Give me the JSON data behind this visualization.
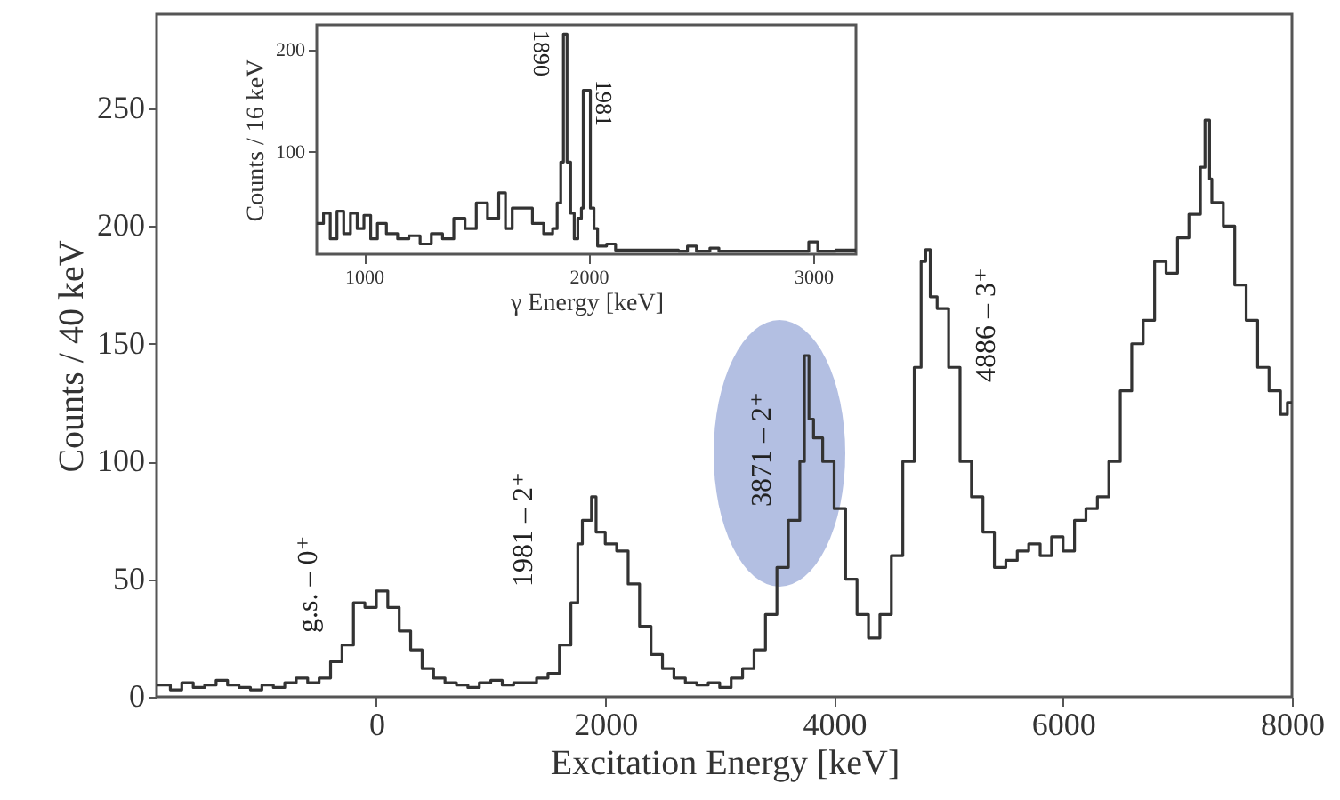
{
  "chart_data": [
    {
      "type": "step",
      "xlabel": "Excitation Energy [keV]",
      "ylabel": "Counts / 40 keV",
      "color": "#333333",
      "xlim": [
        -1920,
        8000
      ],
      "ylim": [
        0,
        290
      ],
      "xticks": [
        0,
        2000,
        4000,
        6000,
        8000
      ],
      "yticks": [
        0,
        50,
        100,
        150,
        200,
        250
      ],
      "x": [
        -1920,
        -1800,
        -1700,
        -1600,
        -1500,
        -1400,
        -1300,
        -1200,
        -1100,
        -1000,
        -900,
        -800,
        -700,
        -600,
        -500,
        -400,
        -300,
        -200,
        -100,
        0,
        100,
        200,
        300,
        400,
        500,
        600,
        700,
        800,
        900,
        1000,
        1100,
        1200,
        1300,
        1400,
        1500,
        1600,
        1700,
        1760,
        1800,
        1880,
        1920,
        2000,
        2100,
        2200,
        2300,
        2400,
        2500,
        2600,
        2700,
        2800,
        2900,
        3000,
        3100,
        3200,
        3300,
        3400,
        3500,
        3600,
        3700,
        3740,
        3780,
        3820,
        3900,
        4000,
        4100,
        4200,
        4300,
        4400,
        4500,
        4600,
        4700,
        4760,
        4800,
        4840,
        4900,
        5000,
        5100,
        5200,
        5300,
        5400,
        5500,
        5600,
        5700,
        5800,
        5900,
        6000,
        6100,
        6200,
        6300,
        6400,
        6500,
        6600,
        6700,
        6800,
        6900,
        7000,
        7100,
        7200,
        7240,
        7280,
        7300,
        7400,
        7500,
        7600,
        7700,
        7800,
        7900,
        7960,
        8000
      ],
      "values": [
        5,
        3,
        6,
        4,
        5,
        7,
        5,
        4,
        3,
        5,
        4,
        6,
        8,
        6,
        8,
        15,
        22,
        40,
        38,
        45,
        38,
        28,
        20,
        12,
        8,
        6,
        5,
        4,
        6,
        7,
        5,
        6,
        6,
        8,
        10,
        22,
        40,
        65,
        75,
        85,
        70,
        65,
        62,
        48,
        30,
        18,
        12,
        8,
        6,
        5,
        6,
        4,
        8,
        12,
        20,
        35,
        55,
        75,
        100,
        145,
        118,
        110,
        100,
        80,
        50,
        35,
        25,
        35,
        60,
        100,
        140,
        185,
        190,
        170,
        165,
        140,
        100,
        85,
        70,
        55,
        58,
        62,
        65,
        60,
        68,
        62,
        75,
        80,
        85,
        100,
        130,
        150,
        160,
        185,
        180,
        195,
        205,
        225,
        245,
        220,
        210,
        200,
        175,
        160,
        140,
        130,
        120,
        125,
        125
      ],
      "annotations": [
        "g.s. – 0⁺",
        "1981 – 2⁺",
        "3871 – 2⁺",
        "4886 – 3⁺"
      ]
    },
    {
      "type": "step",
      "xlabel": "γ Energy [keV]",
      "ylabel": "Counts / 16 keV",
      "color": "#333333",
      "xlim": [
        790,
        3190
      ],
      "ylim": [
        0,
        224
      ],
      "xticks": [
        1000,
        2000,
        3000
      ],
      "yticks": [
        100,
        200
      ],
      "x": [
        790,
        820,
        850,
        880,
        910,
        940,
        970,
        1000,
        1030,
        1060,
        1100,
        1150,
        1200,
        1250,
        1300,
        1350,
        1400,
        1450,
        1500,
        1550,
        1600,
        1630,
        1660,
        1700,
        1750,
        1800,
        1840,
        1860,
        1876,
        1888,
        1904,
        1920,
        1936,
        1952,
        1968,
        1976,
        2008,
        2024,
        2040,
        2080,
        2120,
        2400,
        2440,
        2480,
        2540,
        2580,
        2980,
        3020,
        3100,
        3190
      ],
      "values": [
        30,
        40,
        15,
        42,
        20,
        40,
        25,
        38,
        15,
        30,
        20,
        15,
        18,
        10,
        20,
        15,
        35,
        25,
        50,
        35,
        60,
        25,
        45,
        45,
        30,
        20,
        25,
        50,
        90,
        215,
        90,
        40,
        15,
        35,
        45,
        160,
        45,
        25,
        8,
        10,
        4,
        3,
        8,
        3,
        6,
        3,
        12,
        3,
        4,
        4
      ],
      "annotations": [
        "1890",
        "1981"
      ]
    }
  ]
}
